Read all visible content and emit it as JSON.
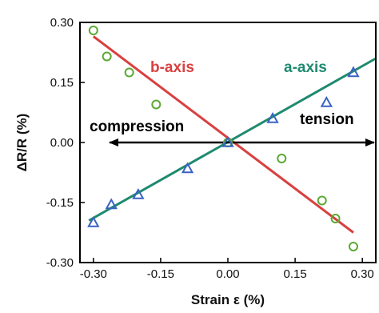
{
  "chart_data": {
    "type": "scatter",
    "xlabel": "Strain ε (%)",
    "ylabel": "ΔR/R (%)",
    "xlim": [
      -0.33,
      0.33
    ],
    "ylim": [
      -0.3,
      0.3
    ],
    "x_ticks": [
      -0.3,
      -0.15,
      0.0,
      0.15,
      0.3
    ],
    "y_ticks": [
      -0.3,
      -0.15,
      0.0,
      0.15,
      0.3
    ],
    "x_tick_labels": [
      "-0.30",
      "-0.15",
      "0.00",
      "0.15",
      "0.30"
    ],
    "y_tick_labels": [
      "-0.30",
      "-0.15",
      "0.00",
      "0.15",
      "0.30"
    ],
    "grid": false,
    "colors": {
      "b_axis": "#d94040",
      "a_axis": "#1f8a6f",
      "circle_marker": "#5aa832",
      "triangle_marker": "#3a62c4",
      "arrow": "#000000"
    },
    "annotations": {
      "b_axis_label": "b-axis",
      "a_axis_label": "a-axis",
      "compression": "compression",
      "tension": "tension"
    },
    "fit_lines": [
      {
        "name": "b-axis",
        "x": [
          -0.3,
          0.28
        ],
        "y": [
          0.265,
          -0.225
        ]
      },
      {
        "name": "a-axis",
        "x": [
          -0.31,
          0.33
        ],
        "y": [
          -0.195,
          0.21
        ]
      }
    ],
    "series": [
      {
        "marker": "circle",
        "points": [
          [
            -0.3,
            0.28
          ],
          [
            -0.27,
            0.215
          ],
          [
            -0.22,
            0.175
          ],
          [
            -0.16,
            0.095
          ],
          [
            0.0,
            0.0
          ],
          [
            0.12,
            -0.04
          ],
          [
            0.21,
            -0.145
          ],
          [
            0.24,
            -0.19
          ],
          [
            0.28,
            -0.26
          ]
        ]
      },
      {
        "marker": "triangle",
        "points": [
          [
            -0.3,
            -0.2
          ],
          [
            -0.26,
            -0.155
          ],
          [
            -0.2,
            -0.13
          ],
          [
            -0.09,
            -0.065
          ],
          [
            0.0,
            0.0
          ],
          [
            0.1,
            0.06
          ],
          [
            0.22,
            0.1
          ],
          [
            0.28,
            0.175
          ]
        ]
      }
    ]
  }
}
